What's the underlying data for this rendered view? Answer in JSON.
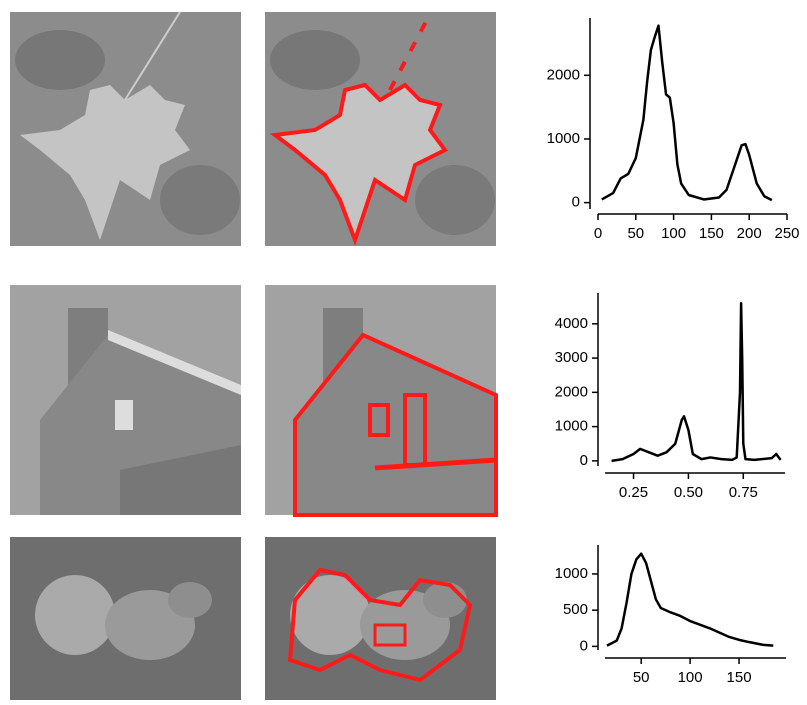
{
  "chart_data": [
    {
      "type": "line",
      "color": "#000000",
      "x": [
        5,
        20,
        30,
        40,
        50,
        60,
        65,
        70,
        75,
        80,
        85,
        90,
        95,
        100,
        105,
        110,
        120,
        140,
        160,
        170,
        180,
        190,
        195,
        200,
        210,
        220,
        230
      ],
      "values": [
        50,
        150,
        380,
        450,
        700,
        1300,
        1900,
        2400,
        2600,
        2780,
        2200,
        1700,
        1650,
        1250,
        600,
        300,
        120,
        50,
        80,
        200,
        550,
        900,
        920,
        750,
        300,
        100,
        40
      ],
      "xlim": [
        0,
        250
      ],
      "ylim": [
        -100,
        2900
      ],
      "xticks": [
        0,
        50,
        100,
        150,
        200,
        250
      ],
      "yticks": [
        0,
        1000,
        2000
      ]
    },
    {
      "type": "line",
      "color": "#000000",
      "x": [
        0.15,
        0.2,
        0.25,
        0.28,
        0.32,
        0.36,
        0.4,
        0.44,
        0.47,
        0.48,
        0.5,
        0.52,
        0.56,
        0.6,
        0.65,
        0.7,
        0.72,
        0.735,
        0.74,
        0.745,
        0.75,
        0.76,
        0.8,
        0.88,
        0.9,
        0.92
      ],
      "values": [
        0,
        50,
        200,
        350,
        250,
        150,
        250,
        500,
        1200,
        1300,
        900,
        200,
        50,
        100,
        50,
        30,
        100,
        2000,
        4600,
        3000,
        500,
        50,
        30,
        80,
        200,
        30
      ],
      "xlim": [
        0.12,
        0.94
      ],
      "ylim": [
        -150,
        4900
      ],
      "xticks": [
        0.25,
        {
          "value": 0.5,
          "label": "0.50"
        },
        0.75
      ],
      "yticks": [
        0,
        1000,
        2000,
        3000,
        4000
      ]
    },
    {
      "type": "line",
      "color": "#000000",
      "x": [
        15,
        25,
        30,
        35,
        40,
        45,
        50,
        55,
        60,
        65,
        70,
        80,
        90,
        100,
        110,
        120,
        130,
        140,
        150,
        160,
        175,
        185
      ],
      "values": [
        10,
        80,
        250,
        600,
        1000,
        1200,
        1280,
        1150,
        900,
        650,
        530,
        470,
        420,
        350,
        300,
        250,
        190,
        130,
        90,
        60,
        20,
        10
      ],
      "xlim": [
        13,
        198
      ],
      "ylim": [
        -50,
        1400
      ],
      "xticks": [
        50,
        100,
        150
      ],
      "yticks": [
        0,
        500,
        1000
      ]
    }
  ]
}
